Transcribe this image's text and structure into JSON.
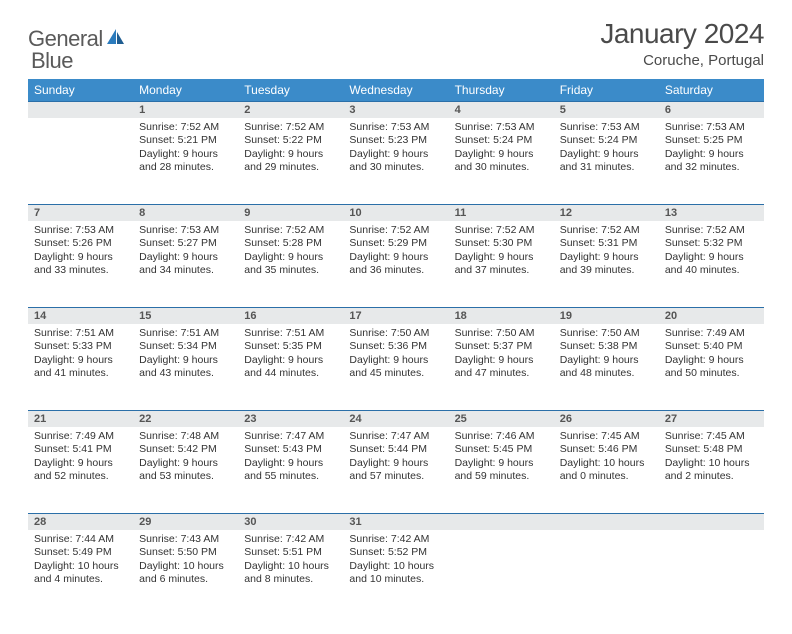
{
  "brand": {
    "word1": "General",
    "word2": "Blue"
  },
  "title": "January 2024",
  "location": "Coruche, Portugal",
  "colors": {
    "header_bg": "#3b8bc9",
    "header_fg": "#ffffff",
    "daynum_bg": "#e7e9ea",
    "rule": "#2b6fa8",
    "brand_gray": "#5a5a5a",
    "brand_blue": "#2b7bbd"
  },
  "weekdays": [
    "Sunday",
    "Monday",
    "Tuesday",
    "Wednesday",
    "Thursday",
    "Friday",
    "Saturday"
  ],
  "weeks": [
    [
      null,
      {
        "n": "1",
        "sr": "7:52 AM",
        "ss": "5:21 PM",
        "dl": "9 hours and 28 minutes."
      },
      {
        "n": "2",
        "sr": "7:52 AM",
        "ss": "5:22 PM",
        "dl": "9 hours and 29 minutes."
      },
      {
        "n": "3",
        "sr": "7:53 AM",
        "ss": "5:23 PM",
        "dl": "9 hours and 30 minutes."
      },
      {
        "n": "4",
        "sr": "7:53 AM",
        "ss": "5:24 PM",
        "dl": "9 hours and 30 minutes."
      },
      {
        "n": "5",
        "sr": "7:53 AM",
        "ss": "5:24 PM",
        "dl": "9 hours and 31 minutes."
      },
      {
        "n": "6",
        "sr": "7:53 AM",
        "ss": "5:25 PM",
        "dl": "9 hours and 32 minutes."
      }
    ],
    [
      {
        "n": "7",
        "sr": "7:53 AM",
        "ss": "5:26 PM",
        "dl": "9 hours and 33 minutes."
      },
      {
        "n": "8",
        "sr": "7:53 AM",
        "ss": "5:27 PM",
        "dl": "9 hours and 34 minutes."
      },
      {
        "n": "9",
        "sr": "7:52 AM",
        "ss": "5:28 PM",
        "dl": "9 hours and 35 minutes."
      },
      {
        "n": "10",
        "sr": "7:52 AM",
        "ss": "5:29 PM",
        "dl": "9 hours and 36 minutes."
      },
      {
        "n": "11",
        "sr": "7:52 AM",
        "ss": "5:30 PM",
        "dl": "9 hours and 37 minutes."
      },
      {
        "n": "12",
        "sr": "7:52 AM",
        "ss": "5:31 PM",
        "dl": "9 hours and 39 minutes."
      },
      {
        "n": "13",
        "sr": "7:52 AM",
        "ss": "5:32 PM",
        "dl": "9 hours and 40 minutes."
      }
    ],
    [
      {
        "n": "14",
        "sr": "7:51 AM",
        "ss": "5:33 PM",
        "dl": "9 hours and 41 minutes."
      },
      {
        "n": "15",
        "sr": "7:51 AM",
        "ss": "5:34 PM",
        "dl": "9 hours and 43 minutes."
      },
      {
        "n": "16",
        "sr": "7:51 AM",
        "ss": "5:35 PM",
        "dl": "9 hours and 44 minutes."
      },
      {
        "n": "17",
        "sr": "7:50 AM",
        "ss": "5:36 PM",
        "dl": "9 hours and 45 minutes."
      },
      {
        "n": "18",
        "sr": "7:50 AM",
        "ss": "5:37 PM",
        "dl": "9 hours and 47 minutes."
      },
      {
        "n": "19",
        "sr": "7:50 AM",
        "ss": "5:38 PM",
        "dl": "9 hours and 48 minutes."
      },
      {
        "n": "20",
        "sr": "7:49 AM",
        "ss": "5:40 PM",
        "dl": "9 hours and 50 minutes."
      }
    ],
    [
      {
        "n": "21",
        "sr": "7:49 AM",
        "ss": "5:41 PM",
        "dl": "9 hours and 52 minutes."
      },
      {
        "n": "22",
        "sr": "7:48 AM",
        "ss": "5:42 PM",
        "dl": "9 hours and 53 minutes."
      },
      {
        "n": "23",
        "sr": "7:47 AM",
        "ss": "5:43 PM",
        "dl": "9 hours and 55 minutes."
      },
      {
        "n": "24",
        "sr": "7:47 AM",
        "ss": "5:44 PM",
        "dl": "9 hours and 57 minutes."
      },
      {
        "n": "25",
        "sr": "7:46 AM",
        "ss": "5:45 PM",
        "dl": "9 hours and 59 minutes."
      },
      {
        "n": "26",
        "sr": "7:45 AM",
        "ss": "5:46 PM",
        "dl": "10 hours and 0 minutes."
      },
      {
        "n": "27",
        "sr": "7:45 AM",
        "ss": "5:48 PM",
        "dl": "10 hours and 2 minutes."
      }
    ],
    [
      {
        "n": "28",
        "sr": "7:44 AM",
        "ss": "5:49 PM",
        "dl": "10 hours and 4 minutes."
      },
      {
        "n": "29",
        "sr": "7:43 AM",
        "ss": "5:50 PM",
        "dl": "10 hours and 6 minutes."
      },
      {
        "n": "30",
        "sr": "7:42 AM",
        "ss": "5:51 PM",
        "dl": "10 hours and 8 minutes."
      },
      {
        "n": "31",
        "sr": "7:42 AM",
        "ss": "5:52 PM",
        "dl": "10 hours and 10 minutes."
      },
      null,
      null,
      null
    ]
  ],
  "labels": {
    "sunrise": "Sunrise:",
    "sunset": "Sunset:",
    "daylight": "Daylight:"
  }
}
